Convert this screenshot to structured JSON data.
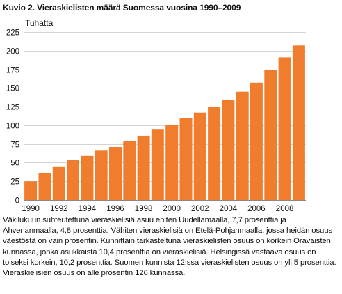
{
  "figure": {
    "title": "Kuvio 2. Vieraskielisten määrä Suomessa vuosina 1990–2009",
    "caption": "Väkilukuun suhteutettuna vieraskielisiä asuu eniten Uudellamaalla, 7,7 prosenttia ja Ahvenanmaalla, 4,8 prosenttia. Vähiten vieraskielisiä on Etelä-Pohjanmaalla, jossa heidän osuus väestöstä on vain prosentin. Kunnittain tarkasteltuna vieraskielisten osuus on korkein Oravaisten kunnassa, jonka asukkaista 10,4 prosenttia on vieraskielisiä. Helsingissä vastaava osuus on toiseksi korkein, 10,2 prosenttia. Suomen kunnista 12:ssa vieraskielisten osuus on yli 5 prosenttia. Vieraskielisien osuus on alle prosentin 126 kunnassa."
  },
  "chart_data": {
    "type": "bar",
    "ylabel": "Tuhatta",
    "categories": [
      "1990",
      "1991",
      "1992",
      "1993",
      "1994",
      "1995",
      "1996",
      "1997",
      "1998",
      "1999",
      "2000",
      "2001",
      "2002",
      "2003",
      "2004",
      "2005",
      "2006",
      "2007",
      "2008",
      "2009"
    ],
    "xtick_labels": [
      "1990",
      "1992",
      "1994",
      "1996",
      "1998",
      "2000",
      "2002",
      "2004",
      "2006",
      "2008"
    ],
    "values": [
      25,
      36,
      45,
      54,
      59,
      66,
      71,
      79,
      86,
      95,
      100,
      110,
      117,
      125,
      134,
      145,
      157,
      174,
      191,
      207
    ],
    "ylim": [
      0,
      225
    ],
    "yticks": [
      0,
      25,
      50,
      75,
      100,
      125,
      150,
      175,
      200,
      225
    ],
    "grid": true,
    "color": "#f07d2e"
  }
}
